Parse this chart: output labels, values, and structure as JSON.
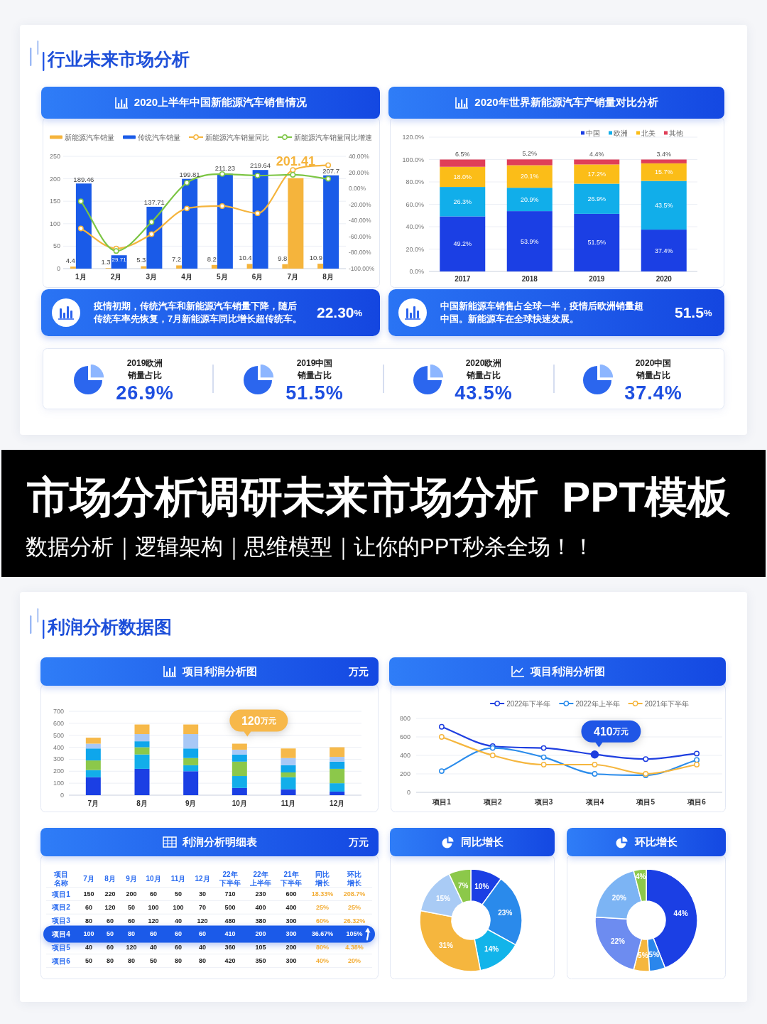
{
  "chart_data": [
    {
      "type": "other",
      "title": "行业未来市场分析"
    },
    {
      "type": "bar",
      "title": "2020上半年中国新能源汽车销售情况",
      "categories": [
        "1月",
        "2月",
        "3月",
        "4月",
        "5月",
        "6月",
        "7月",
        "8月"
      ],
      "series": [
        {
          "name": "新能源汽车销量",
          "type": "bar",
          "color": "#f5b43c",
          "values": [
            4.4,
            1.3,
            5.3,
            7.2,
            8.2,
            10.4,
            9.8,
            10.9
          ],
          "value_labels": [
            "4.4",
            "1.3",
            "5.3",
            "7.2",
            "8.2",
            "10.4",
            "9.8",
            "10.9"
          ]
        },
        {
          "name": "传统汽车销量",
          "type": "bar",
          "color": "#1a5be8",
          "colors": [
            "#1a5be8",
            "#1a5be8",
            "#1a5be8",
            "#1a5be8",
            "#1a5be8",
            "#1a5be8",
            "#f5b43c",
            "#1a5be8"
          ],
          "values": [
            189.46,
            29.71,
            137.71,
            199.81,
            211.23,
            219.64,
            201.41,
            207.7
          ],
          "value_labels": [
            "189.46",
            "29.71",
            "137.71",
            "199.81",
            "211.23",
            "219.64",
            "201.41",
            "207.7"
          ]
        },
        {
          "name": "新能源汽车销量同比",
          "type": "line",
          "axis": "y2",
          "color": "#f5b43c",
          "values": [
            -50,
            -75,
            -57,
            -25,
            -22,
            -31,
            23,
            29
          ]
        },
        {
          "name": "新能源汽车销量同比增速",
          "type": "line",
          "axis": "y2",
          "color": "#7cc544",
          "values": [
            -16,
            -78,
            -42,
            7,
            18,
            16,
            17,
            12
          ]
        }
      ],
      "ylim": [
        0,
        250
      ],
      "yticks": [
        0,
        50,
        100,
        150,
        200,
        250
      ],
      "y2lim": [
        -100,
        40
      ],
      "y2ticks": [
        {
          "value": -100,
          "label": "-100.00%"
        },
        {
          "value": -80,
          "label": "-80.00%"
        },
        {
          "value": -60,
          "label": "-60.00%"
        },
        {
          "value": -40,
          "label": "-40.00%"
        },
        {
          "value": -20,
          "label": "-20.00%"
        },
        {
          "value": 0,
          "label": "0.00%"
        },
        {
          "value": 20,
          "label": "20.00%"
        },
        {
          "value": 40,
          "label": "40.00%"
        }
      ],
      "grid": "y",
      "legend": "top",
      "marker": "circle",
      "annotations": [
        "疫情初期，传统汽车和新能源汽车销量下降，随后传统车率先恢复，7月新能源车同比增长超传统车。",
        "22.30%"
      ]
    },
    {
      "type": "bar",
      "stacked": true,
      "title": "2020年世界新能源汽车产销量对比分析",
      "categories": [
        "2017",
        "2018",
        "2019",
        "2020"
      ],
      "series": [
        {
          "name": "中国",
          "color": "#1b3fe4",
          "values": [
            49.2,
            53.9,
            51.5,
            37.4
          ],
          "value_labels": [
            "49.2%",
            "53.9%",
            "51.5%",
            "37.4%"
          ]
        },
        {
          "name": "欧洲",
          "color": "#11aeea",
          "values": [
            26.3,
            20.9,
            26.9,
            43.5
          ],
          "value_labels": [
            "26.3%",
            "20.9%",
            "26.9%",
            "43.5%"
          ]
        },
        {
          "name": "北美",
          "color": "#fbbd18",
          "values": [
            18.0,
            20.1,
            17.2,
            15.7
          ],
          "value_labels": [
            "18.0%",
            "20.1%",
            "17.2%",
            "15.7%"
          ]
        },
        {
          "name": "其他",
          "color": "#e03e58",
          "values": [
            6.5,
            5.2,
            4.4,
            3.4
          ],
          "value_labels": [
            "6.5%",
            "5.2%",
            "4.4%",
            "3.4%"
          ]
        }
      ],
      "ylim": [
        0,
        120
      ],
      "yticks": [
        {
          "value": 0,
          "label": "0.0%"
        },
        {
          "value": 20,
          "label": "20.0%"
        },
        {
          "value": 40,
          "label": "40.0%"
        },
        {
          "value": 60,
          "label": "60.0%"
        },
        {
          "value": 80,
          "label": "80.0%"
        },
        {
          "value": 100,
          "label": "100.0%"
        },
        {
          "value": 120,
          "label": "120.0%"
        }
      ],
      "grid": "y",
      "legend": "top right",
      "annotations": [
        "中国新能源车销售占全球一半，疫情后欧洲销量超中国。新能源车在全球快速发展。",
        "51.5%"
      ]
    },
    {
      "type": "other",
      "annotations": [
        "2019欧洲",
        "销量占比",
        "26.9%",
        "2019中国",
        "销量占比",
        "51.5%",
        "2020欧洲",
        "销量占比",
        "43.5%",
        "2020中国",
        "销量占比",
        "37.4%"
      ]
    },
    {
      "type": "other",
      "title": "市场分析调研未来市场分析  PPT模板",
      "subtitle": "数据分析｜逻辑架构｜思维模型｜让你的PPT秒杀全场！！"
    },
    {
      "type": "other",
      "title": "利润分析数据图"
    },
    {
      "type": "bar",
      "stacked": true,
      "title": "项目利润分析图",
      "subtitle": "万元",
      "categories": [
        "7月",
        "8月",
        "9月",
        "10月",
        "11月",
        "12月"
      ],
      "series": [
        {
          "color": "#1b3fe4",
          "values": [
            150,
            220,
            200,
            60,
            50,
            30
          ]
        },
        {
          "color": "#12aeea",
          "values": [
            60,
            120,
            50,
            100,
            100,
            70
          ]
        },
        {
          "color": "#8cc84a",
          "values": [
            80,
            60,
            60,
            120,
            40,
            120
          ]
        },
        {
          "color": "#0ea6ec",
          "values": [
            100,
            50,
            80,
            60,
            60,
            60
          ]
        },
        {
          "color": "#a8c8f6",
          "values": [
            40,
            60,
            120,
            40,
            60,
            40
          ]
        },
        {
          "color": "#f6b94a",
          "values": [
            50,
            80,
            80,
            50,
            80,
            80
          ]
        }
      ],
      "ylim": [
        0,
        700
      ],
      "yticks": [
        0,
        100,
        200,
        300,
        400,
        500,
        600,
        700
      ],
      "grid": "y",
      "annotations": [
        {
          "text": "120万元",
          "x": "10月",
          "y": 430
        }
      ]
    },
    {
      "type": "line",
      "title": "项目利润分析图",
      "categories": [
        "项目1",
        "项目2",
        "项目3",
        "项目4",
        "项目5",
        "项目6"
      ],
      "series": [
        {
          "name": "2022年下半年",
          "color": "#1f3fe0",
          "values": [
            710,
            500,
            480,
            410,
            360,
            420
          ]
        },
        {
          "name": "2022年上半年",
          "color": "#2b8ceb",
          "values": [
            230,
            480,
            380,
            200,
            185,
            350
          ]
        },
        {
          "name": "2021年下半年",
          "color": "#f5b63e",
          "values": [
            600,
            400,
            300,
            300,
            200,
            300
          ]
        }
      ],
      "ylim": [
        0,
        800
      ],
      "yticks": [
        0,
        200,
        400,
        600,
        800
      ],
      "grid": "y",
      "legend": "top",
      "marker": "circle",
      "annotations": [
        {
          "text": "410万元",
          "x": "项目4",
          "y": 410
        }
      ]
    },
    {
      "type": "heatmap",
      "title": "利润分析明细表",
      "subtitle": "万元",
      "ylabel": "项目名称",
      "categories": [
        "7月",
        "8月",
        "9月",
        "10月",
        "11月",
        "12月",
        "22年下半年",
        "22年上半年",
        "21年下半年",
        "同比增长",
        "环比增长"
      ],
      "y_categories": [
        "项目1",
        "项目2",
        "项目3",
        "项目4",
        "项目5",
        "项目6"
      ],
      "cells": [
        [
          150,
          220,
          200,
          60,
          50,
          30,
          710,
          230,
          600,
          18.33,
          208.7
        ],
        [
          60,
          120,
          50,
          100,
          100,
          70,
          500,
          400,
          400,
          25,
          25
        ],
        [
          80,
          60,
          60,
          120,
          40,
          120,
          480,
          380,
          300,
          60,
          26.32
        ],
        [
          100,
          50,
          80,
          60,
          60,
          60,
          410,
          200,
          300,
          36.67,
          105
        ],
        [
          40,
          60,
          120,
          40,
          60,
          40,
          360,
          105,
          200,
          80,
          4.38
        ],
        [
          50,
          80,
          80,
          50,
          80,
          80,
          420,
          350,
          300,
          40,
          20
        ]
      ],
      "cell_labels": [
        [
          "150",
          "220",
          "200",
          "60",
          "50",
          "30",
          "710",
          "230",
          "600",
          "18.33%",
          "208.7%"
        ],
        [
          "60",
          "120",
          "50",
          "100",
          "100",
          "70",
          "500",
          "400",
          "400",
          "25%",
          "25%"
        ],
        [
          "80",
          "60",
          "60",
          "120",
          "40",
          "120",
          "480",
          "380",
          "300",
          "60%",
          "26.32%"
        ],
        [
          "100",
          "50",
          "80",
          "60",
          "60",
          "60",
          "410",
          "200",
          "300",
          "36.67%",
          "105%"
        ],
        [
          "40",
          "60",
          "120",
          "40",
          "60",
          "40",
          "360",
          "105",
          "200",
          "80%",
          "4.38%"
        ],
        [
          "50",
          "80",
          "80",
          "50",
          "80",
          "80",
          "420",
          "350",
          "300",
          "40%",
          "20%"
        ]
      ],
      "bands": [
        {
          "axis": "y",
          "from": "项目4",
          "to": "项目4",
          "color": "#1b5ae9"
        }
      ]
    },
    {
      "type": "donut",
      "title": "同比增长",
      "categories": [
        null,
        null,
        null,
        null,
        null,
        null
      ],
      "values": [
        10,
        23,
        14,
        31,
        15,
        7
      ],
      "colors": [
        "#1b3fe4",
        "#2a8aeb",
        "#12b4ea",
        "#f5b63e",
        "#a9cbf5",
        "#8cc84a"
      ],
      "value_labels": [
        "10%",
        "23%",
        "14%",
        "31%",
        "15%",
        "7%"
      ]
    },
    {
      "type": "donut",
      "title": "环比增长",
      "categories": [
        null,
        null,
        null,
        null,
        null,
        null
      ],
      "values": [
        44,
        5,
        5,
        22,
        20,
        4
      ],
      "colors": [
        "#1b3fe4",
        "#2a86ec",
        "#f5b63e",
        "#6d8cf0",
        "#7cb4f4",
        "#8cc84a"
      ],
      "value_labels": [
        "44%",
        "5%",
        "5%",
        "22%",
        "20%",
        "4%"
      ]
    }
  ]
}
